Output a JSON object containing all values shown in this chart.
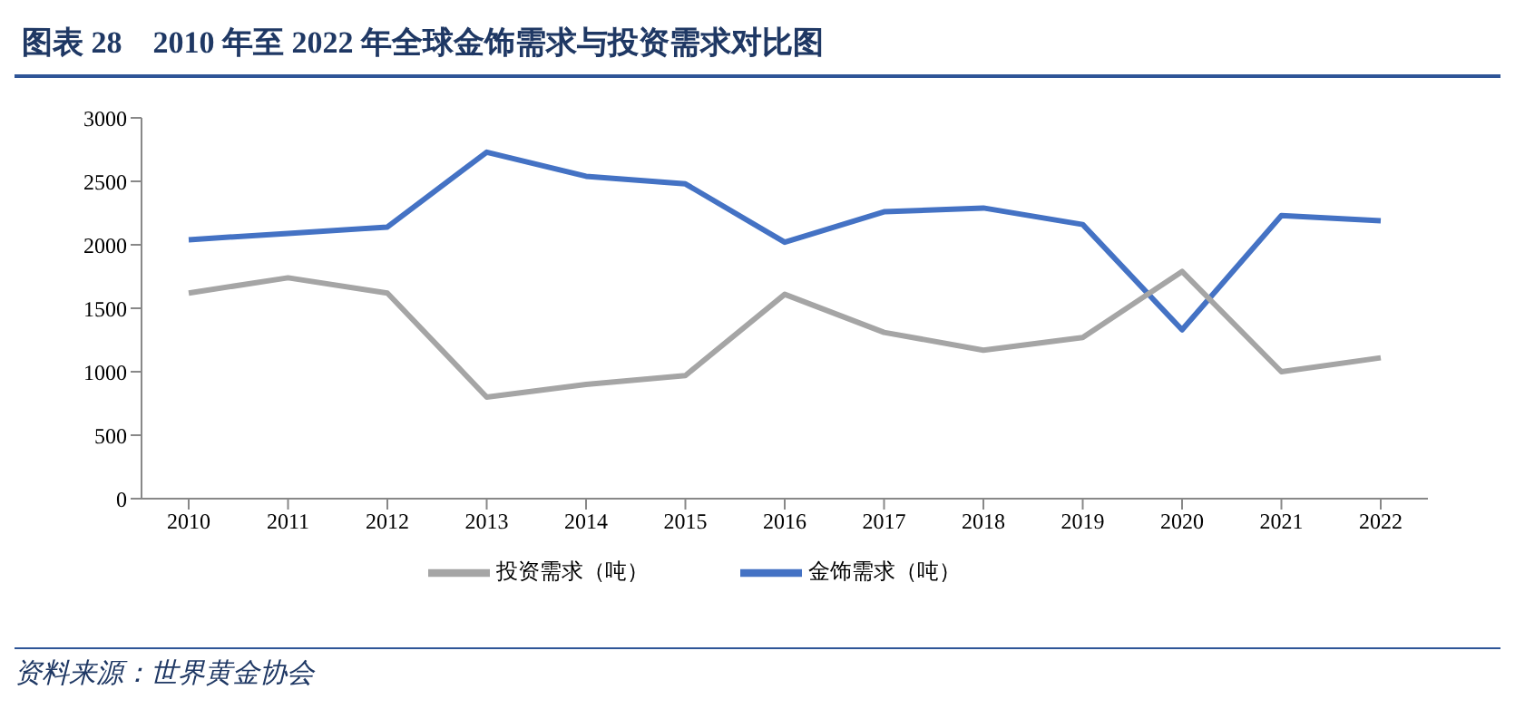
{
  "chart_data": {
    "type": "line",
    "title": "图表 28　2010 年至 2022 年全球金饰需求与投资需求对比图",
    "categories": [
      "2010",
      "2011",
      "2012",
      "2013",
      "2014",
      "2015",
      "2016",
      "2017",
      "2018",
      "2019",
      "2020",
      "2021",
      "2022"
    ],
    "series": [
      {
        "name": "金饰需求（吨）",
        "color": "#4472c4",
        "values": [
          2040,
          2090,
          2140,
          2730,
          2540,
          2480,
          2020,
          2260,
          2290,
          2160,
          1330,
          2230,
          2190
        ]
      },
      {
        "name": "投资需求（吨）",
        "color": "#a5a5a5",
        "values": [
          1620,
          1740,
          1620,
          800,
          900,
          970,
          1610,
          1310,
          1170,
          1270,
          1790,
          1000,
          1110
        ]
      }
    ],
    "ylim": [
      0,
      3000
    ],
    "yticks": [
      0,
      500,
      1000,
      1500,
      2000,
      2500,
      3000
    ],
    "grid": false,
    "legend": "bottom",
    "marker": "none",
    "line_style": "solid",
    "annotations": [
      "资料来源：世界黄金协会"
    ]
  }
}
